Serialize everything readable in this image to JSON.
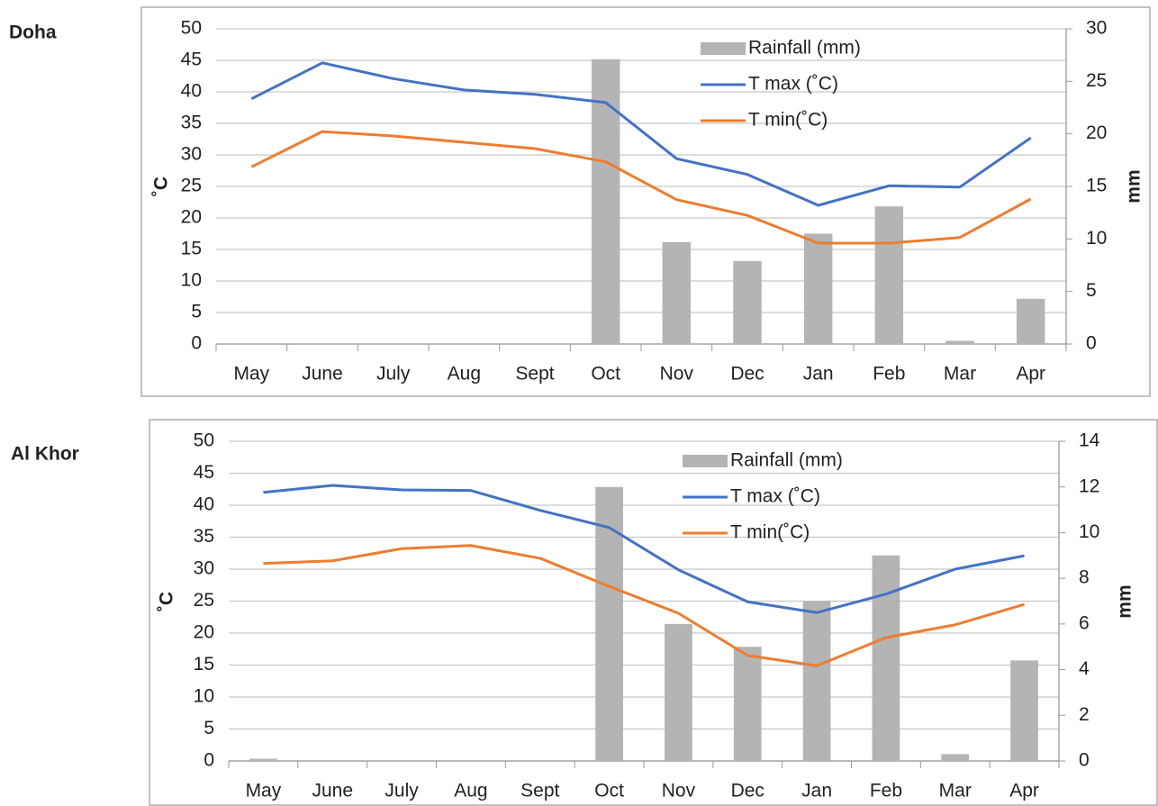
{
  "chart_data": [
    {
      "type": "combo",
      "title": "Doha",
      "y_label": "˚C",
      "y2_label": "mm",
      "categories": [
        "May",
        "June",
        "July",
        "Aug",
        "Sept",
        "Oct",
        "Nov",
        "Dec",
        "Jan",
        "Feb",
        "Mar",
        "Apr"
      ],
      "ylim": [
        0,
        50
      ],
      "yticks": [
        0,
        5,
        10,
        15,
        20,
        25,
        30,
        35,
        40,
        45,
        50
      ],
      "y2lim": [
        0,
        30
      ],
      "y2ticks": [
        0,
        5,
        10,
        15,
        20,
        25,
        30
      ],
      "grid": true,
      "legend": "top-right",
      "series": [
        {
          "name": "Rainfall (mm)",
          "type": "bar",
          "axis": "y2",
          "color": "#b4b4b4",
          "values": [
            0,
            0,
            0,
            0,
            0,
            27.1,
            9.7,
            7.9,
            10.5,
            13.1,
            0.3,
            4.3
          ]
        },
        {
          "name": "T max (˚C)",
          "type": "line",
          "color": "#4472c4",
          "values": [
            38.9,
            44.6,
            42.1,
            40.3,
            39.6,
            38.3,
            29.4,
            26.9,
            22,
            25.1,
            24.9,
            32.7
          ]
        },
        {
          "name": "T min(˚C)",
          "type": "line",
          "color": "#ed7d31",
          "values": [
            28.1,
            33.7,
            33,
            32,
            31,
            28.9,
            22.9,
            20.4,
            16,
            16,
            16.9,
            23
          ]
        }
      ]
    },
    {
      "type": "combo",
      "title": "Al Khor",
      "y_label": "˚C",
      "y2_label": "mm",
      "categories": [
        "May",
        "June",
        "July",
        "Aug",
        "Sept",
        "Oct",
        "Nov",
        "Dec",
        "Jan",
        "Feb",
        "Mar",
        "Apr"
      ],
      "ylim": [
        0,
        50
      ],
      "yticks": [
        0,
        5,
        10,
        15,
        20,
        25,
        30,
        35,
        40,
        45,
        50
      ],
      "y2lim": [
        0,
        14
      ],
      "y2ticks": [
        0,
        2,
        4,
        6,
        8,
        10,
        12,
        14
      ],
      "grid": true,
      "legend": "top-right",
      "series": [
        {
          "name": "Rainfall (mm)",
          "type": "bar",
          "axis": "y2",
          "color": "#b4b4b4",
          "values": [
            0.1,
            0,
            0,
            0,
            0,
            12,
            6,
            5,
            7,
            9,
            0.3,
            4.4
          ]
        },
        {
          "name": "T max (˚C)",
          "type": "line",
          "color": "#4472c4",
          "values": [
            42,
            43.1,
            42.4,
            42.3,
            39.2,
            36.5,
            29.9,
            24.9,
            23.2,
            26.1,
            30,
            32.1
          ]
        },
        {
          "name": "T min(˚C)",
          "type": "line",
          "color": "#ed7d31",
          "values": [
            30.9,
            31.3,
            33.2,
            33.7,
            31.7,
            27.3,
            23.1,
            16.5,
            14.9,
            19.3,
            21.3,
            24.5
          ]
        }
      ]
    }
  ]
}
